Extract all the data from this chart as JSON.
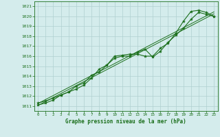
{
  "title": "Graphe pression niveau de la mer (hPa)",
  "bg_color": "#d4ecec",
  "grid_color": "#b0d0d0",
  "line_color": "#1a6e1a",
  "marker_color": "#1a6e1a",
  "xlim": [
    -0.5,
    23.5
  ],
  "ylim": [
    1010.5,
    1021.5
  ],
  "yticks": [
    1011,
    1012,
    1013,
    1014,
    1015,
    1016,
    1017,
    1018,
    1019,
    1020,
    1021
  ],
  "xticks": [
    0,
    1,
    2,
    3,
    4,
    5,
    6,
    7,
    8,
    9,
    10,
    11,
    12,
    13,
    14,
    15,
    16,
    17,
    18,
    19,
    20,
    21,
    22,
    23
  ],
  "main_data": [
    1011.3,
    1011.5,
    1011.8,
    1012.1,
    1012.4,
    1013.0,
    1013.3,
    1014.1,
    1014.4,
    1015.1,
    1016.0,
    1016.1,
    1016.2,
    1016.2,
    1016.0,
    1016.0,
    1016.8,
    1017.3,
    1018.3,
    1019.5,
    1020.5,
    1020.6,
    1020.4,
    1020.0
  ],
  "line1_data": [
    1011.1,
    1011.3,
    1011.6,
    1012.1,
    1012.4,
    1012.7,
    1013.1,
    1013.8,
    1014.7,
    1015.1,
    1015.8,
    1016.0,
    1016.0,
    1016.4,
    1016.7,
    1015.9,
    1016.5,
    1017.4,
    1018.1,
    1018.8,
    1019.7,
    1020.4,
    1020.2,
    1020.0
  ],
  "trend1": [
    1011.05,
    1011.45,
    1011.85,
    1012.25,
    1012.65,
    1013.05,
    1013.45,
    1013.85,
    1014.25,
    1014.65,
    1015.05,
    1015.45,
    1015.85,
    1016.25,
    1016.65,
    1017.05,
    1017.45,
    1017.85,
    1018.25,
    1018.65,
    1019.05,
    1019.45,
    1019.85,
    1020.25
  ],
  "trend2": [
    1011.25,
    1011.65,
    1012.05,
    1012.45,
    1012.85,
    1013.25,
    1013.65,
    1014.05,
    1014.45,
    1014.85,
    1015.25,
    1015.65,
    1016.05,
    1016.45,
    1016.85,
    1017.25,
    1017.65,
    1018.05,
    1018.45,
    1018.85,
    1019.25,
    1019.65,
    1020.05,
    1020.45
  ]
}
